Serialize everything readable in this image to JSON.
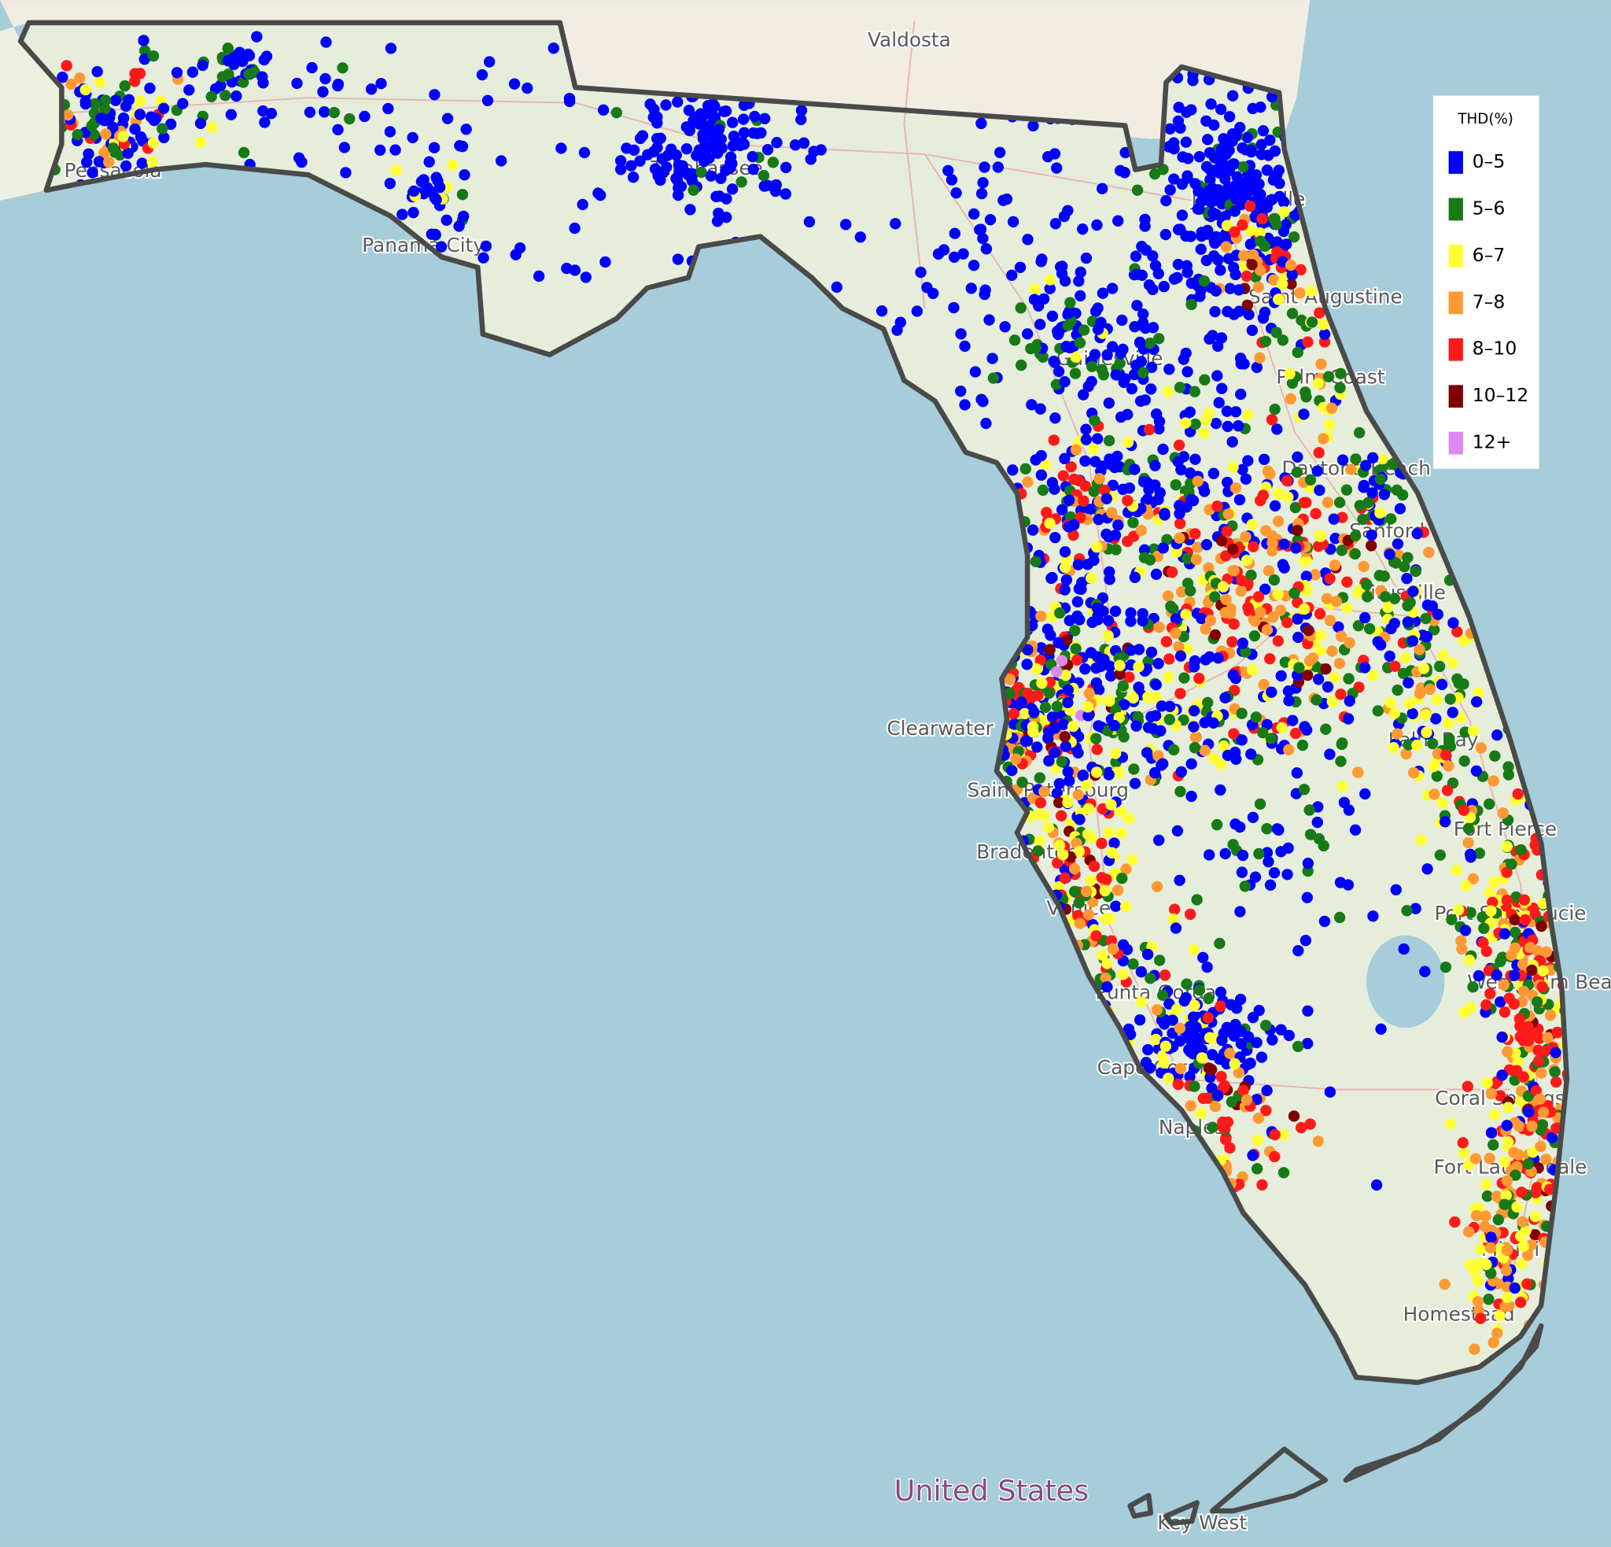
{
  "map": {
    "legend": {
      "title": "THD(%)",
      "items": [
        {
          "label": "0–5",
          "color": "#0000ff"
        },
        {
          "label": "5–6",
          "color": "#177a17"
        },
        {
          "label": "6–7",
          "color": "#ffff33"
        },
        {
          "label": "7–8",
          "color": "#ff9933"
        },
        {
          "label": "8–10",
          "color": "#ff1a1a"
        },
        {
          "label": "10–12",
          "color": "#800000"
        },
        {
          "label": "12+",
          "color": "#dd88ee"
        }
      ]
    },
    "places": [
      "Valdosta",
      "Pensacola",
      "Tallahassee",
      "Panama City",
      "Gainesville",
      "Jacksonville",
      "Saint Augustine",
      "Palm Coast",
      "Daytona Beach",
      "Sanford",
      "Titusville",
      "Clearwater",
      "Saint Petersburg",
      "Bradenton",
      "Venice",
      "Punta Gorda",
      "Cape Coral",
      "Naples",
      "Palm Bay",
      "Fort Pierce",
      "Port Saint Lucie",
      "West Palm Beach",
      "Coral Springs",
      "Fort Lauderdale",
      "Miami",
      "Homestead",
      "Key West"
    ],
    "country": "United States"
  }
}
